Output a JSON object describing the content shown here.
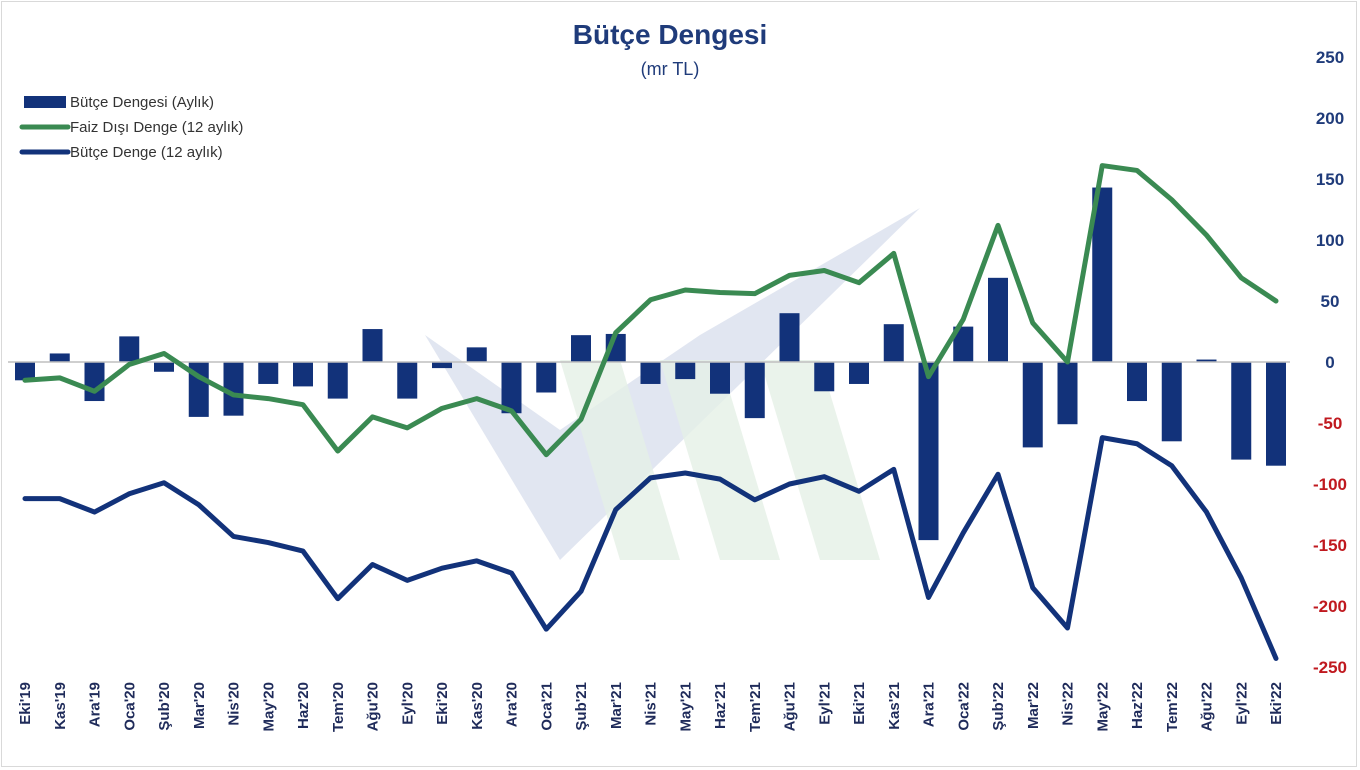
{
  "chart_data": {
    "type": "bar",
    "title": "Bütçe Dengesi",
    "subtitle": "(mr TL)",
    "ylim": [
      -250,
      250
    ],
    "yticks": [
      250,
      200,
      150,
      100,
      50,
      0,
      -50,
      -100,
      -150,
      -200,
      -250
    ],
    "categories": [
      "Eki'19",
      "Kas'19",
      "Ara'19",
      "Oca'20",
      "Şub'20",
      "Mar'20",
      "Nis'20",
      "May'20",
      "Haz'20",
      "Tem'20",
      "Ağu'20",
      "Eyl'20",
      "Eki'20",
      "Kas'20",
      "Ara'20",
      "Oca'21",
      "Şub'21",
      "Mar'21",
      "Nis'21",
      "May'21",
      "Haz'21",
      "Tem'21",
      "Ağu'21",
      "Eyl'21",
      "Eki'21",
      "Kas'21",
      "Ara'21",
      "Oca'22",
      "Şub'22",
      "Mar'22",
      "Nis'22",
      "May'22",
      "Haz'22",
      "Tem'22",
      "Ağu'22",
      "Eyl'22",
      "Eki'22"
    ],
    "series": [
      {
        "name": "Bütçe Dengesi (Aylık)",
        "kind": "bar",
        "color": "#12327a",
        "values": [
          -15,
          7,
          -32,
          21,
          -8,
          -45,
          -44,
          -18,
          -20,
          -30,
          27,
          -30,
          -5,
          12,
          -42,
          -25,
          22,
          23,
          -18,
          -14,
          -26,
          -46,
          40,
          -24,
          -18,
          31,
          -146,
          29,
          69,
          -70,
          -51,
          143,
          -32,
          -65,
          2,
          -80,
          -85
        ]
      },
      {
        "name": "Faiz Dışı Denge (12 aylık)",
        "kind": "line",
        "color": "#3a8a52",
        "values": [
          -15,
          -13,
          -24,
          -2,
          7,
          -12,
          -27,
          -30,
          -35,
          -73,
          -45,
          -54,
          -38,
          -30,
          -40,
          -76,
          -47,
          24,
          51,
          59,
          57,
          56,
          71,
          75,
          65,
          89,
          -12,
          35,
          112,
          32,
          0,
          161,
          157,
          133,
          104,
          69,
          50
        ]
      },
      {
        "name": "Bütçe Denge (12 aylık)",
        "kind": "line",
        "color": "#12327a",
        "values": [
          -112,
          -112,
          -123,
          -108,
          -99,
          -117,
          -143,
          -148,
          -155,
          -194,
          -166,
          -179,
          -169,
          -163,
          -173,
          -219,
          -188,
          -121,
          -95,
          -91,
          -96,
          -113,
          -100,
          -94,
          -106,
          -88,
          -193,
          -140,
          -92,
          -185,
          -218,
          -62,
          -67,
          -85,
          -123,
          -177,
          -243
        ]
      }
    ],
    "positive_tick_color": "#1f3b7a",
    "negative_tick_color": "#c0191f"
  }
}
